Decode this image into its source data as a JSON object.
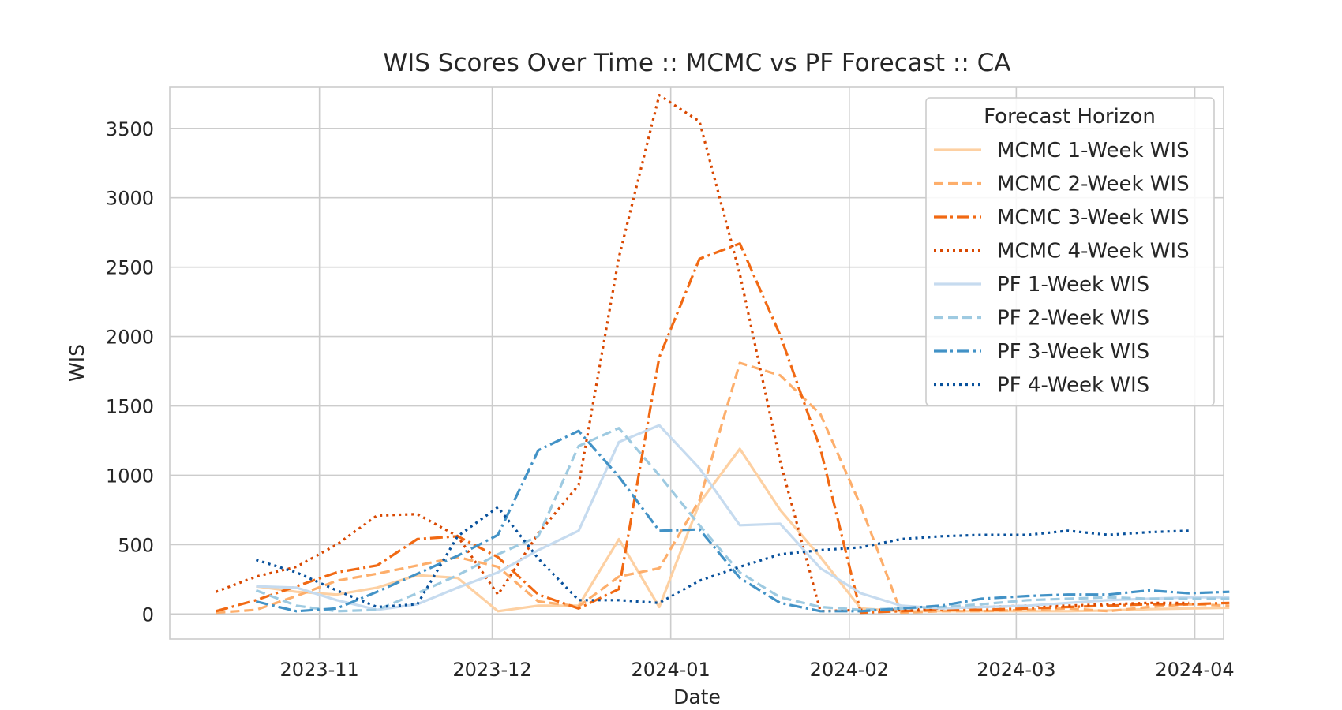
{
  "chart_data": {
    "type": "line",
    "title": "WIS Scores Over Time :: MCMC vs PF Forecast :: CA",
    "xlabel": "Date",
    "ylabel": "WIS",
    "x_axis_type": "date",
    "xlim": [
      "2023-10-06",
      "2024-04-06"
    ],
    "ylim": [
      -180,
      3800
    ],
    "x_ticks": [
      "2023-11-01",
      "2023-12-01",
      "2024-01-01",
      "2024-02-01",
      "2024-03-01",
      "2024-04-01"
    ],
    "x_tick_labels": [
      "2023-11",
      "2023-12",
      "2024-01",
      "2024-02",
      "2024-03",
      "2024-04"
    ],
    "y_ticks": [
      0,
      500,
      1000,
      1500,
      2000,
      2500,
      3000,
      3500
    ],
    "y_tick_labels": [
      "0",
      "500",
      "1000",
      "1500",
      "2000",
      "2500",
      "3000",
      "3500"
    ],
    "grid": true,
    "legend": {
      "title": "Forecast Horizon",
      "placement": "top-right"
    },
    "series": [
      {
        "name": "MCMC 1-Week WIS",
        "color": "#fdd0a2",
        "dash": "solid",
        "points": [
          [
            "2023-10-21",
            200
          ],
          [
            "2023-10-28",
            160
          ],
          [
            "2023-11-04",
            140
          ],
          [
            "2023-11-11",
            190
          ],
          [
            "2023-11-18",
            280
          ],
          [
            "2023-11-25",
            260
          ],
          [
            "2023-12-02",
            20
          ],
          [
            "2023-12-09",
            60
          ],
          [
            "2023-12-16",
            60
          ],
          [
            "2023-12-23",
            540
          ],
          [
            "2023-12-30",
            50
          ],
          [
            "2024-01-06",
            800
          ],
          [
            "2024-01-13",
            1190
          ],
          [
            "2024-01-20",
            750
          ],
          [
            "2024-01-27",
            410
          ],
          [
            "2024-02-03",
            40
          ],
          [
            "2024-02-10",
            20
          ],
          [
            "2024-02-17",
            20
          ],
          [
            "2024-02-24",
            20
          ],
          [
            "2024-03-03",
            20
          ],
          [
            "2024-03-10",
            20
          ],
          [
            "2024-03-17",
            25
          ],
          [
            "2024-03-24",
            35
          ],
          [
            "2024-03-31",
            40
          ],
          [
            "2024-04-07",
            45
          ]
        ]
      },
      {
        "name": "MCMC 2-Week WIS",
        "color": "#fdae6b",
        "dash": "dashed",
        "points": [
          [
            "2023-10-14",
            10
          ],
          [
            "2023-10-21",
            30
          ],
          [
            "2023-10-28",
            130
          ],
          [
            "2023-11-04",
            240
          ],
          [
            "2023-11-11",
            290
          ],
          [
            "2023-11-18",
            350
          ],
          [
            "2023-11-25",
            410
          ],
          [
            "2023-12-02",
            340
          ],
          [
            "2023-12-09",
            90
          ],
          [
            "2023-12-16",
            55
          ],
          [
            "2023-12-23",
            270
          ],
          [
            "2023-12-30",
            330
          ],
          [
            "2024-01-06",
            820
          ],
          [
            "2024-01-13",
            1810
          ],
          [
            "2024-01-20",
            1720
          ],
          [
            "2024-01-27",
            1440
          ],
          [
            "2024-02-03",
            780
          ],
          [
            "2024-02-10",
            10
          ],
          [
            "2024-02-17",
            20
          ],
          [
            "2024-02-24",
            20
          ],
          [
            "2024-03-03",
            30
          ],
          [
            "2024-03-10",
            40
          ],
          [
            "2024-03-17",
            20
          ],
          [
            "2024-03-24",
            50
          ],
          [
            "2024-03-31",
            70
          ],
          [
            "2024-04-07",
            60
          ]
        ]
      },
      {
        "name": "MCMC 3-Week WIS",
        "color": "#f16913",
        "dash": "dashdot",
        "points": [
          [
            "2023-10-14",
            20
          ],
          [
            "2023-10-21",
            100
          ],
          [
            "2023-10-28",
            200
          ],
          [
            "2023-11-04",
            300
          ],
          [
            "2023-11-11",
            350
          ],
          [
            "2023-11-18",
            540
          ],
          [
            "2023-11-25",
            560
          ],
          [
            "2023-12-02",
            410
          ],
          [
            "2023-12-09",
            140
          ],
          [
            "2023-12-16",
            40
          ],
          [
            "2023-12-23",
            180
          ],
          [
            "2023-12-30",
            1850
          ],
          [
            "2024-01-06",
            2560
          ],
          [
            "2024-01-13",
            2670
          ],
          [
            "2024-01-20",
            2010
          ],
          [
            "2024-01-27",
            1190
          ],
          [
            "2024-02-03",
            10
          ],
          [
            "2024-02-10",
            20
          ],
          [
            "2024-02-17",
            30
          ],
          [
            "2024-02-24",
            30
          ],
          [
            "2024-03-03",
            40
          ],
          [
            "2024-03-10",
            50
          ],
          [
            "2024-03-17",
            60
          ],
          [
            "2024-03-24",
            70
          ],
          [
            "2024-03-31",
            70
          ],
          [
            "2024-04-07",
            80
          ]
        ]
      },
      {
        "name": "MCMC 4-Week WIS",
        "color": "#d94801",
        "dash": "dotted",
        "points": [
          [
            "2023-10-14",
            160
          ],
          [
            "2023-10-21",
            270
          ],
          [
            "2023-10-28",
            340
          ],
          [
            "2023-11-04",
            500
          ],
          [
            "2023-11-11",
            710
          ],
          [
            "2023-11-18",
            720
          ],
          [
            "2023-11-25",
            560
          ],
          [
            "2023-12-02",
            140
          ],
          [
            "2023-12-09",
            580
          ],
          [
            "2023-12-16",
            930
          ],
          [
            "2023-12-23",
            2570
          ],
          [
            "2023-12-30",
            3740
          ],
          [
            "2024-01-06",
            3550
          ],
          [
            "2024-01-13",
            2450
          ],
          [
            "2024-01-20",
            1100
          ],
          [
            "2024-01-27",
            20
          ],
          [
            "2024-02-03",
            30
          ],
          [
            "2024-02-10",
            30
          ],
          [
            "2024-02-17",
            40
          ],
          [
            "2024-02-24",
            50
          ],
          [
            "2024-03-03",
            60
          ],
          [
            "2024-03-10",
            60
          ],
          [
            "2024-03-17",
            70
          ],
          [
            "2024-03-24",
            80
          ],
          [
            "2024-03-31",
            80
          ]
        ]
      },
      {
        "name": "PF 1-Week WIS",
        "color": "#c6dbef",
        "dash": "solid",
        "points": [
          [
            "2023-10-21",
            200
          ],
          [
            "2023-10-28",
            190
          ],
          [
            "2023-11-04",
            100
          ],
          [
            "2023-11-11",
            30
          ],
          [
            "2023-11-18",
            70
          ],
          [
            "2023-11-25",
            190
          ],
          [
            "2023-12-02",
            300
          ],
          [
            "2023-12-09",
            460
          ],
          [
            "2023-12-16",
            600
          ],
          [
            "2023-12-23",
            1240
          ],
          [
            "2023-12-30",
            1360
          ],
          [
            "2024-01-06",
            1050
          ],
          [
            "2024-01-13",
            640
          ],
          [
            "2024-01-20",
            650
          ],
          [
            "2024-01-27",
            330
          ],
          [
            "2024-02-03",
            150
          ],
          [
            "2024-02-10",
            60
          ],
          [
            "2024-02-17",
            40
          ],
          [
            "2024-02-24",
            50
          ],
          [
            "2024-03-03",
            60
          ],
          [
            "2024-03-10",
            80
          ],
          [
            "2024-03-17",
            100
          ],
          [
            "2024-03-24",
            110
          ],
          [
            "2024-03-31",
            120
          ],
          [
            "2024-04-07",
            120
          ]
        ]
      },
      {
        "name": "PF 2-Week WIS",
        "color": "#9ecae1",
        "dash": "dashed",
        "points": [
          [
            "2023-10-21",
            170
          ],
          [
            "2023-10-28",
            60
          ],
          [
            "2023-11-04",
            20
          ],
          [
            "2023-11-11",
            30
          ],
          [
            "2023-11-18",
            150
          ],
          [
            "2023-11-25",
            280
          ],
          [
            "2023-12-02",
            430
          ],
          [
            "2023-12-09",
            560
          ],
          [
            "2023-12-16",
            1210
          ],
          [
            "2023-12-23",
            1340
          ],
          [
            "2023-12-30",
            1000
          ],
          [
            "2024-01-06",
            640
          ],
          [
            "2024-01-13",
            300
          ],
          [
            "2024-01-20",
            120
          ],
          [
            "2024-01-27",
            50
          ],
          [
            "2024-02-03",
            30
          ],
          [
            "2024-02-10",
            40
          ],
          [
            "2024-02-17",
            50
          ],
          [
            "2024-02-24",
            70
          ],
          [
            "2024-03-03",
            100
          ],
          [
            "2024-03-10",
            110
          ],
          [
            "2024-03-17",
            120
          ],
          [
            "2024-03-24",
            110
          ],
          [
            "2024-03-31",
            110
          ],
          [
            "2024-04-07",
            110
          ]
        ]
      },
      {
        "name": "PF 3-Week WIS",
        "color": "#4292c6",
        "dash": "dashdot",
        "points": [
          [
            "2023-10-21",
            90
          ],
          [
            "2023-10-28",
            20
          ],
          [
            "2023-11-04",
            40
          ],
          [
            "2023-11-11",
            160
          ],
          [
            "2023-11-18",
            290
          ],
          [
            "2023-11-25",
            420
          ],
          [
            "2023-12-02",
            570
          ],
          [
            "2023-12-09",
            1180
          ],
          [
            "2023-12-16",
            1320
          ],
          [
            "2023-12-23",
            990
          ],
          [
            "2023-12-30",
            600
          ],
          [
            "2024-01-06",
            610
          ],
          [
            "2024-01-13",
            260
          ],
          [
            "2024-01-20",
            80
          ],
          [
            "2024-01-27",
            20
          ],
          [
            "2024-02-03",
            20
          ],
          [
            "2024-02-10",
            40
          ],
          [
            "2024-02-17",
            60
          ],
          [
            "2024-02-24",
            110
          ],
          [
            "2024-03-03",
            130
          ],
          [
            "2024-03-10",
            140
          ],
          [
            "2024-03-17",
            140
          ],
          [
            "2024-03-24",
            170
          ],
          [
            "2024-03-31",
            150
          ],
          [
            "2024-04-07",
            160
          ]
        ]
      },
      {
        "name": "PF 4-Week WIS",
        "color": "#08519c",
        "dash": "dotted",
        "points": [
          [
            "2023-10-21",
            390
          ],
          [
            "2023-10-28",
            300
          ],
          [
            "2023-11-04",
            170
          ],
          [
            "2023-11-11",
            50
          ],
          [
            "2023-11-18",
            70
          ],
          [
            "2023-11-25",
            560
          ],
          [
            "2023-12-02",
            770
          ],
          [
            "2023-12-09",
            400
          ],
          [
            "2023-12-16",
            100
          ],
          [
            "2023-12-23",
            100
          ],
          [
            "2023-12-30",
            80
          ],
          [
            "2024-01-06",
            240
          ],
          [
            "2024-01-13",
            340
          ],
          [
            "2024-01-20",
            430
          ],
          [
            "2024-01-27",
            460
          ],
          [
            "2024-02-03",
            480
          ],
          [
            "2024-02-10",
            540
          ],
          [
            "2024-02-17",
            560
          ],
          [
            "2024-02-24",
            570
          ],
          [
            "2024-03-03",
            570
          ],
          [
            "2024-03-10",
            600
          ],
          [
            "2024-03-17",
            570
          ],
          [
            "2024-03-24",
            590
          ],
          [
            "2024-03-31",
            600
          ]
        ]
      }
    ]
  }
}
